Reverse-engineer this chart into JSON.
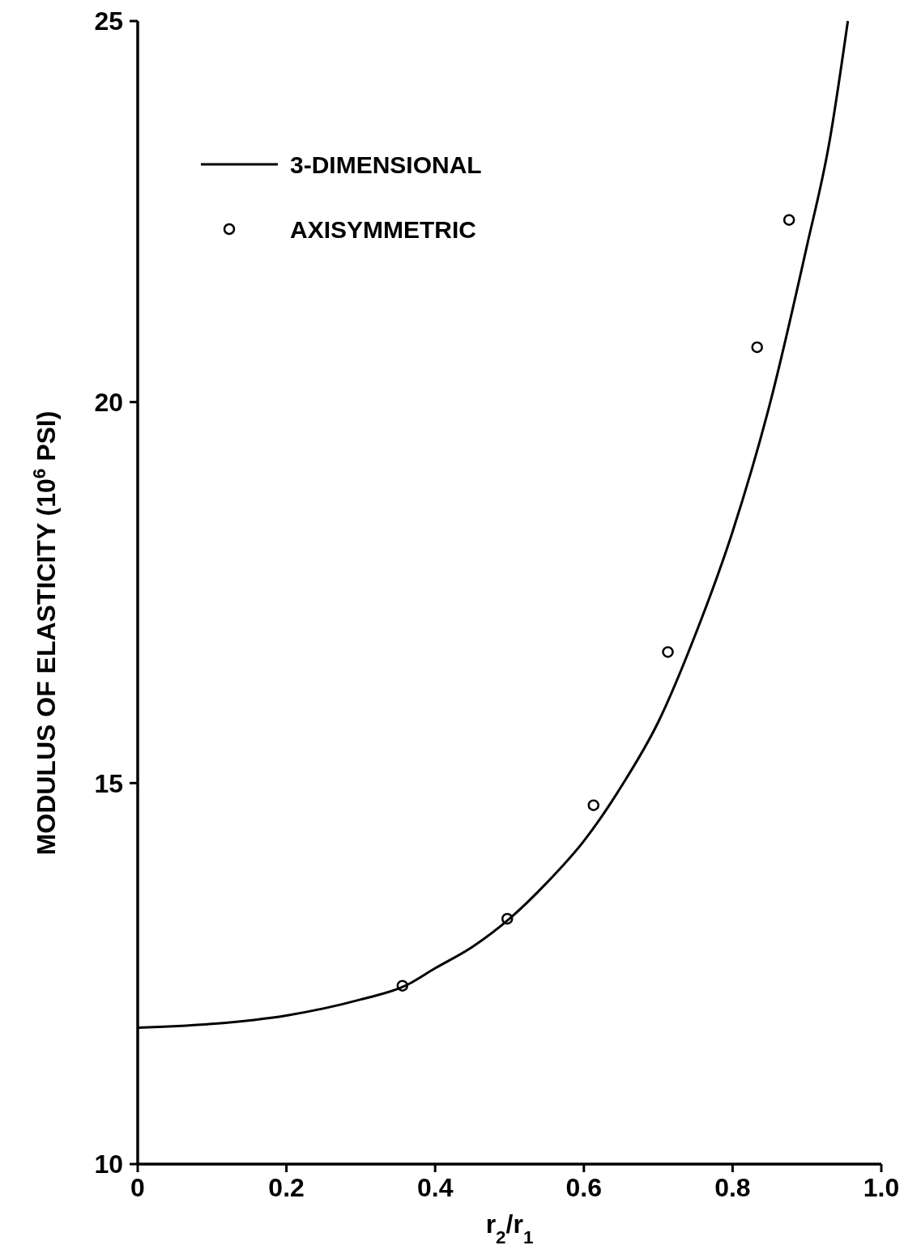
{
  "chart_data": {
    "type": "line",
    "xlabel": "r$_{2}$/r$_{1}$",
    "ylabel": "MODULUS OF ELASTICITY (10$^{6}$ PSI)",
    "xlim": [
      0,
      1
    ],
    "ylim": [
      10,
      25
    ],
    "xticks": [
      0,
      0.2,
      0.4,
      0.6,
      0.8,
      {
        "value": 1,
        "label": "1.0"
      }
    ],
    "yticks": [
      10,
      15,
      20,
      25
    ],
    "grid": false,
    "legend": "top left",
    "series": [
      {
        "name": "3-DIMENSIONAL",
        "type": "line",
        "color": "#000000",
        "marker": "none",
        "x": [
          0,
          0.1,
          0.2,
          0.3,
          0.36,
          0.4,
          0.45,
          0.5,
          0.55,
          0.6,
          0.65,
          0.7,
          0.75,
          0.8,
          0.85,
          0.9,
          0.93,
          0.955
        ],
        "values": [
          11.79,
          11.84,
          11.95,
          12.16,
          12.34,
          12.57,
          12.85,
          13.22,
          13.69,
          14.24,
          14.95,
          15.8,
          16.95,
          18.3,
          19.97,
          22.05,
          23.4,
          25
        ]
      },
      {
        "name": "AXISYMMETRIC",
        "type": "scatter",
        "color": "#000000",
        "marker": "circle",
        "x": [
          0.356,
          0.497,
          0.613,
          0.713,
          0.833,
          0.876
        ],
        "values": [
          12.34,
          13.22,
          14.71,
          16.72,
          20.72,
          22.39
        ]
      }
    ]
  }
}
